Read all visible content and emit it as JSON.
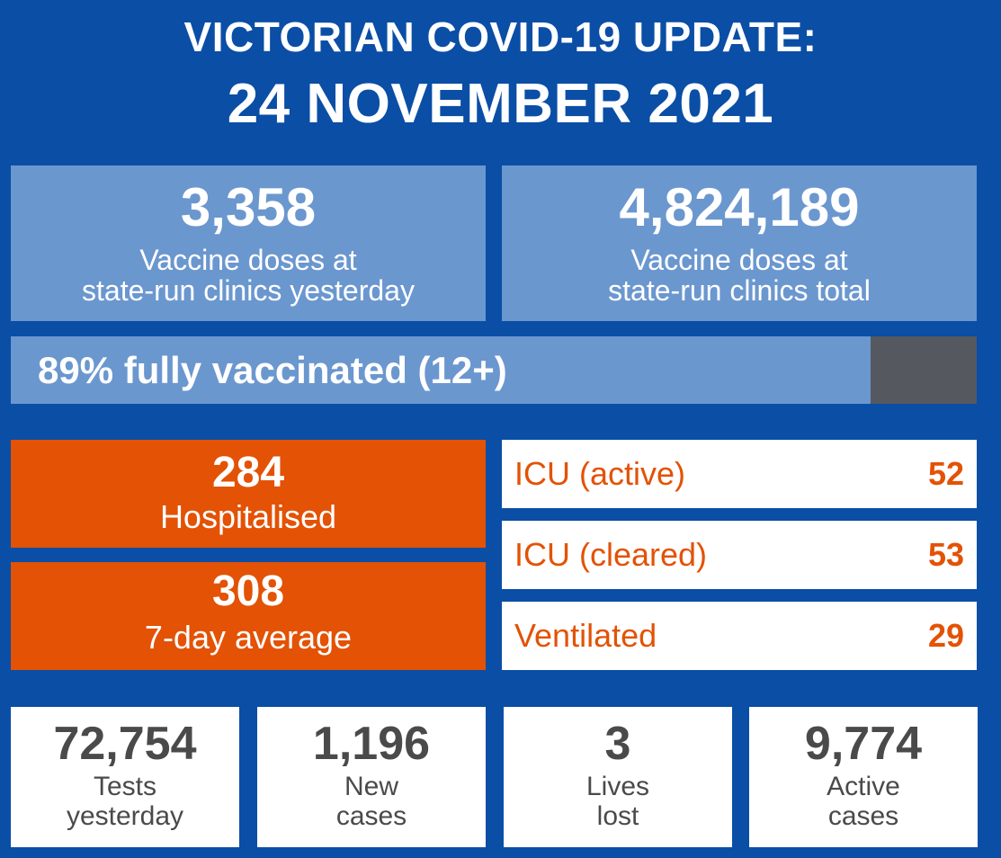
{
  "header": {
    "line1": "VICTORIAN COVID-19 UPDATE:",
    "line2": "24 NOVEMBER 2021"
  },
  "vaccines": {
    "yesterday": {
      "value": "3,358",
      "label_line1": "Vaccine doses at",
      "label_line2": "state-run clinics yesterday"
    },
    "total": {
      "value": "4,824,189",
      "label_line1": "Vaccine doses at",
      "label_line2": "state-run clinics total"
    }
  },
  "fully_vaccinated": {
    "label": "89% fully vaccinated (12+)",
    "percent": 89
  },
  "hospital": {
    "hospitalised": {
      "value": "284",
      "label": "Hospitalised"
    },
    "average": {
      "value": "308",
      "label": "7-day average"
    }
  },
  "icu": [
    {
      "label": "ICU (active)",
      "value": "52"
    },
    {
      "label": "ICU (cleared)",
      "value": "53"
    },
    {
      "label": "Ventilated",
      "value": "29"
    }
  ],
  "stats": [
    {
      "value": "72,754",
      "label_line1": "Tests",
      "label_line2": "yesterday"
    },
    {
      "value": "1,196",
      "label_line1": "New",
      "label_line2": "cases"
    },
    {
      "value": "3",
      "label_line1": "Lives",
      "label_line2": "lost"
    },
    {
      "value": "9,774",
      "label_line1": "Active",
      "label_line2": "cases"
    }
  ],
  "colors": {
    "background": "#0a4ea6",
    "vaccine_box": "#6b97cf",
    "progress_remainder": "#55595f",
    "hospital_orange": "#e35205",
    "stat_text": "#4a4a4a"
  }
}
